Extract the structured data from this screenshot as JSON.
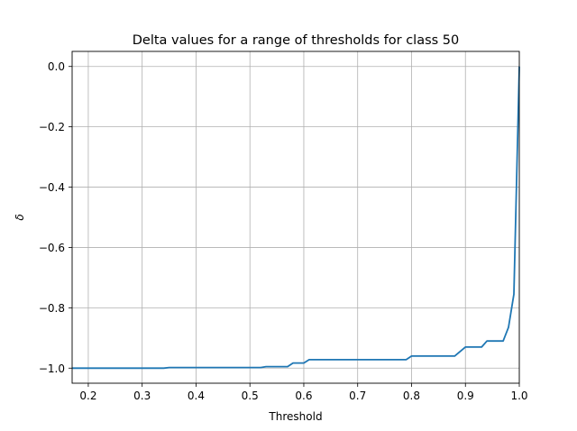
{
  "chart_data": {
    "type": "line",
    "title": "Delta values for a range of thresholds for class 50",
    "xlabel": "Threshold",
    "ylabel": "δ",
    "xlim": [
      0.17,
      1.0
    ],
    "ylim": [
      -1.05,
      0.05
    ],
    "xticks": [
      0.2,
      0.3,
      0.4,
      0.5,
      0.6,
      0.7,
      0.8,
      0.9,
      1.0
    ],
    "xtick_labels": [
      "0.2",
      "0.3",
      "0.4",
      "0.5",
      "0.6",
      "0.7",
      "0.8",
      "0.9",
      "1.0"
    ],
    "yticks": [
      0.0,
      -0.2,
      -0.4,
      -0.6,
      -0.8,
      -1.0
    ],
    "ytick_labels": [
      "0.0",
      "−0.2",
      "−0.4",
      "−0.6",
      "−0.8",
      "−1.0"
    ],
    "grid": true,
    "series_color": "#1f77b4",
    "series": [
      {
        "x": [
          0.17,
          0.34,
          0.35,
          0.52,
          0.53,
          0.57,
          0.58,
          0.6,
          0.61,
          0.79,
          0.8,
          0.88,
          0.9,
          0.93,
          0.94,
          0.97,
          0.98,
          0.99,
          1.0
        ],
        "y": [
          -1.0,
          -1.0,
          -0.998,
          -0.998,
          -0.995,
          -0.995,
          -0.983,
          -0.983,
          -0.972,
          -0.972,
          -0.96,
          -0.96,
          -0.93,
          -0.93,
          -0.91,
          -0.91,
          -0.865,
          -0.755,
          0.0
        ]
      }
    ]
  }
}
